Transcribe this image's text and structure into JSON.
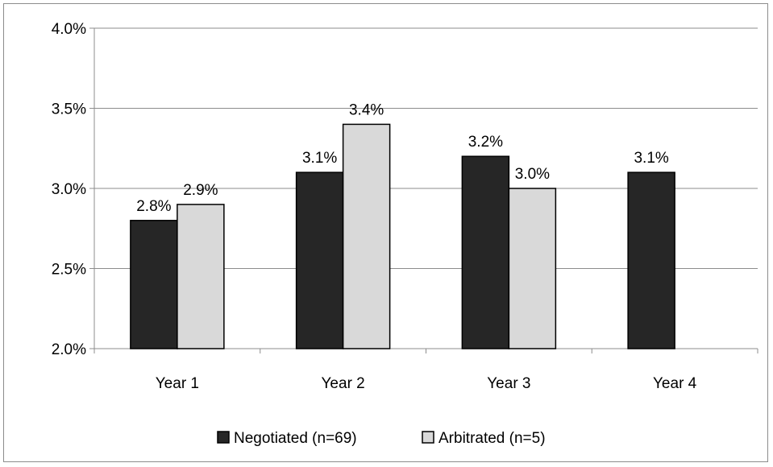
{
  "chart_data": {
    "type": "bar",
    "title": "",
    "xlabel": "",
    "ylabel": "",
    "categories": [
      "Year 1",
      "Year 2",
      "Year 3",
      "Year 4"
    ],
    "ylim": [
      0.02,
      0.04
    ],
    "y_ticks": [
      0.02,
      0.025,
      0.03,
      0.035,
      0.04
    ],
    "y_tick_labels": [
      "2.0%",
      "2.5%",
      "3.0%",
      "3.5%",
      "4.0%"
    ],
    "grid": true,
    "legend_position": "bottom",
    "series": [
      {
        "name": "Negotiated (n=69)",
        "color": "#262626",
        "values": [
          0.028,
          0.031,
          0.032,
          0.031
        ],
        "labels": [
          "2.8%",
          "3.1%",
          "3.2%",
          "3.1%"
        ]
      },
      {
        "name": "Arbitrated (n=5)",
        "color": "#d9d9d9",
        "values": [
          0.029,
          0.034,
          0.03,
          null
        ],
        "labels": [
          "2.9%",
          "3.4%",
          "3.0%",
          null
        ]
      }
    ]
  }
}
